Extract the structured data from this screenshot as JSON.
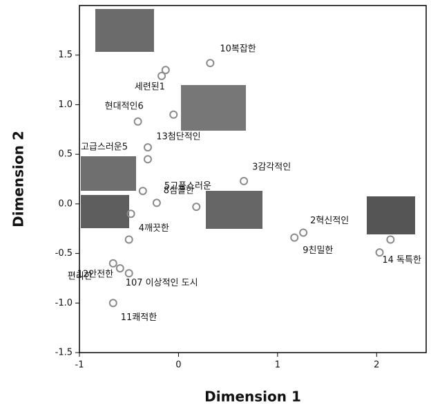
{
  "chart_data": {
    "type": "scatter",
    "xlabel": "Dimension 1",
    "ylabel": "Dimension 2",
    "xlim": [
      -1,
      2.5
    ],
    "ylim": [
      -1.5,
      2.0
    ],
    "xticks": [
      -1,
      0,
      1,
      2
    ],
    "yticks": [
      -1.5,
      {
        "value": -1.0,
        "label": "-1.0"
      },
      -0.5,
      {
        "value": 0.0,
        "label": "0.0"
      },
      0.5,
      {
        "value": 1.0,
        "label": "1.0"
      },
      1.5
    ],
    "series": [
      {
        "color": "#8a8a8a",
        "x": [
          -0.13,
          -0.17,
          0.32,
          -0.05,
          -0.41,
          -0.31,
          -0.31,
          -0.36,
          -0.22,
          0.18,
          0.66,
          1.26,
          1.17,
          2.14,
          2.03,
          -0.48,
          -0.5,
          -0.66,
          -0.59,
          -0.5,
          -0.66
        ],
        "values": [
          1.35,
          1.29,
          1.42,
          0.9,
          0.83,
          0.57,
          0.45,
          0.13,
          0.01,
          -0.03,
          0.23,
          -0.29,
          -0.34,
          -0.36,
          -0.49,
          -0.1,
          -0.36,
          -0.6,
          -0.65,
          -0.7,
          -1.0
        ],
        "labels": [
          "세련된1",
          null,
          "10복잡한",
          "13첨단적인",
          "현대적인6",
          "고급스러운5",
          null,
          "8심플한",
          "5고풍스러운",
          null,
          "3감각적인",
          "2혁신적인",
          "9친밀한",
          "14 독특한",
          null,
          null,
          "4깨끗한",
          "12안전한",
          "편리한",
          "107 이상적인 도시",
          "11쾌적한"
        ]
      }
    ]
  }
}
